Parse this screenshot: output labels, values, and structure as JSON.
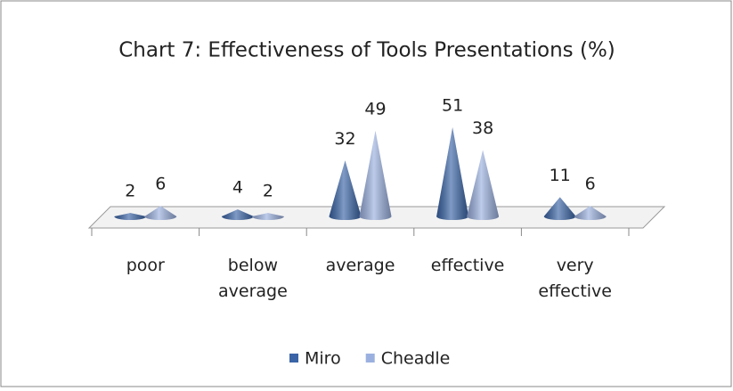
{
  "chart_data": {
    "type": "cone",
    "title": "Chart 7: Effectiveness of Tools Presentations (%)",
    "categories": [
      "poor",
      "below average",
      "average",
      "effective",
      "very effective"
    ],
    "series": [
      {
        "name": "Miro",
        "color": "#3a64a6",
        "values": [
          2,
          4,
          32,
          51,
          11
        ]
      },
      {
        "name": "Cheadle",
        "color": "#9bb0df",
        "values": [
          6,
          2,
          49,
          38,
          6
        ]
      }
    ],
    "legend": "bottom"
  }
}
